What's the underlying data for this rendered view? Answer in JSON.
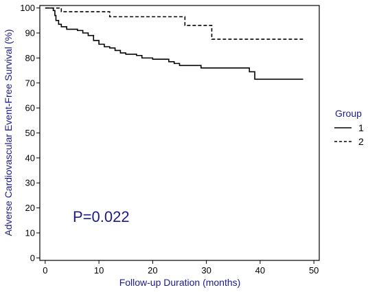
{
  "chart_data": {
    "type": "line",
    "chart_kind": "kaplan-meier step plot",
    "xlabel": "Follow-up Duration (months)",
    "ylabel": "Adverse Cardiovascular Event-Free Survival (%)",
    "xlim": [
      -1,
      51
    ],
    "ylim": [
      -1,
      101
    ],
    "xticks": [
      0,
      10,
      20,
      30,
      40,
      50
    ],
    "yticks": [
      0,
      10,
      20,
      30,
      40,
      50,
      60,
      70,
      80,
      90,
      100
    ],
    "grid": false,
    "legend": {
      "title": "Group",
      "placement": "right"
    },
    "annotation": "P=0.022",
    "colors": {
      "label": "#1a1a8c",
      "series": "#000000"
    },
    "series": [
      {
        "name": "1",
        "style": "solid",
        "points": [
          [
            0,
            100
          ],
          [
            1.5,
            99
          ],
          [
            1.8,
            97
          ],
          [
            2.0,
            95
          ],
          [
            2.5,
            93.5
          ],
          [
            3.0,
            92.5
          ],
          [
            4.0,
            91.5
          ],
          [
            6.0,
            91
          ],
          [
            7.0,
            90
          ],
          [
            8.0,
            89
          ],
          [
            9.0,
            87
          ],
          [
            10.0,
            85.5
          ],
          [
            11.0,
            84.5
          ],
          [
            12.0,
            84
          ],
          [
            13.0,
            83
          ],
          [
            14.0,
            82
          ],
          [
            15.0,
            81.5
          ],
          [
            17.0,
            81
          ],
          [
            18.0,
            80
          ],
          [
            20.0,
            79.5
          ],
          [
            23.0,
            78.5
          ],
          [
            24.0,
            77.8
          ],
          [
            25.0,
            77
          ],
          [
            29.0,
            76
          ],
          [
            38.0,
            74.5
          ],
          [
            39.0,
            71.5
          ],
          [
            48.0,
            71.5
          ]
        ]
      },
      {
        "name": "2",
        "style": "dashed",
        "points": [
          [
            0,
            100
          ],
          [
            3.0,
            98.5
          ],
          [
            12.0,
            96.5
          ],
          [
            26.0,
            93
          ],
          [
            31.0,
            87.5
          ],
          [
            48.0,
            87.5
          ]
        ]
      }
    ]
  }
}
